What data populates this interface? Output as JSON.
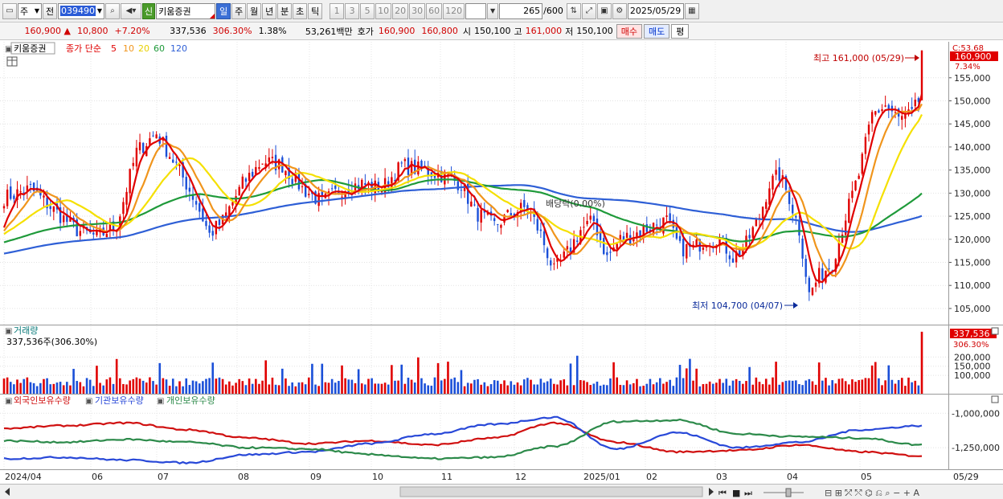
{
  "toolbar": {
    "market_select": "주",
    "prev_label": "전",
    "stock_code": "039490",
    "badge_sin": "신",
    "stock_name": "키움증권",
    "periods": [
      "일",
      "주",
      "월",
      "년",
      "분",
      "초",
      "틱"
    ],
    "active_period": "일",
    "intervals": [
      "1",
      "3",
      "5",
      "10",
      "20",
      "30",
      "60",
      "120"
    ],
    "count": "265",
    "count_max": "/600",
    "date": "2025/05/29"
  },
  "quote": {
    "price": "160,900",
    "change": "10,800",
    "change_pct": "+7.20%",
    "volume": "337,536",
    "volume_ratio": "306.30%",
    "turnover": "1.38%",
    "amount": "53,261백만",
    "hoga_label": "호가",
    "ask": "160,900",
    "bid": "160,800",
    "open_label": "시",
    "open": "150,100",
    "high_label": "고",
    "high": "161,000",
    "low_label": "저",
    "low": "150,100",
    "buy_btn": "매수",
    "sell_btn": "매도",
    "eval_btn": "평"
  },
  "legend": {
    "name": "키움증권",
    "ma_label": "종가 단순",
    "ma5": "5",
    "ma10": "10",
    "ma20": "20",
    "ma60": "60",
    "ma120": "120",
    "volume_title": "거래량",
    "volume_value": "337,536주(306.30%)",
    "holders": [
      "외국인보유수량",
      "기관보유수량",
      "개인보유수량"
    ]
  },
  "annotations": {
    "high": "최고 161,000 (05/29)",
    "low": "최저 104,700 (04/07)",
    "dividend": "배당락(0.00%)",
    "price_tag": "160,900",
    "price_tag_pct": "7.34%",
    "price_c": "C:53.68",
    "vol_tag": "337,536",
    "vol_tag_pct": "306.30%"
  },
  "colors": {
    "up": "#e00000",
    "down": "#1a4fd8",
    "ma5": "#e00000",
    "ma10": "#f0951c",
    "ma20": "#f5e000",
    "ma60": "#1f9a3a",
    "ma120": "#2e5fd6",
    "foreign": "#d01010",
    "inst": "#2848d8",
    "indiv": "#2c8a4a"
  },
  "chart_data": {
    "type": "candlestick",
    "price_axis": {
      "ticks": [
        105000,
        110000,
        115000,
        120000,
        125000,
        130000,
        135000,
        140000,
        145000,
        150000,
        155000
      ],
      "labels": [
        "105,000",
        "110,000",
        "115,000",
        "120,000",
        "125,000",
        "130,000",
        "135,000",
        "140,000",
        "145,000",
        "150,000",
        "155,000"
      ],
      "ylim": [
        101500,
        162800
      ]
    },
    "volume_axis": {
      "ticks": [
        100000,
        150000,
        200000
      ],
      "labels": [
        "100,000",
        "150,000",
        "200,000"
      ],
      "ylim": [
        0,
        350000
      ]
    },
    "holders_axis": {
      "ticks": [
        -1000000,
        -1250000
      ],
      "labels": [
        "-1,000,000",
        "-1,250,000"
      ]
    },
    "x_labels": [
      "2024/04",
      "06",
      "07",
      "08",
      "09",
      "10",
      "11",
      "12",
      "2025/01",
      "02",
      "03",
      "04",
      "05",
      "05/29"
    ],
    "price_anchors": [
      [
        0,
        129000
      ],
      [
        8,
        131000
      ],
      [
        14,
        127000
      ],
      [
        22,
        122000
      ],
      [
        28,
        120500
      ],
      [
        34,
        123000
      ],
      [
        40,
        139000
      ],
      [
        46,
        143000
      ],
      [
        52,
        136000
      ],
      [
        58,
        128000
      ],
      [
        62,
        121000
      ],
      [
        66,
        124000
      ],
      [
        72,
        132000
      ],
      [
        78,
        137000
      ],
      [
        84,
        136000
      ],
      [
        90,
        131000
      ],
      [
        96,
        128000
      ],
      [
        102,
        131000
      ],
      [
        108,
        132000
      ],
      [
        114,
        131000
      ],
      [
        120,
        136000
      ],
      [
        126,
        135000
      ],
      [
        132,
        134000
      ],
      [
        138,
        132000
      ],
      [
        142,
        126000
      ],
      [
        148,
        123000
      ],
      [
        154,
        126000
      ],
      [
        158,
        127000
      ],
      [
        162,
        121000
      ],
      [
        166,
        113000
      ],
      [
        170,
        117000
      ],
      [
        174,
        122000
      ],
      [
        178,
        124000
      ],
      [
        182,
        116000
      ],
      [
        186,
        120000
      ],
      [
        190,
        121000
      ],
      [
        196,
        123000
      ],
      [
        200,
        124000
      ],
      [
        204,
        118000
      ],
      [
        208,
        118000
      ],
      [
        212,
        120000
      ],
      [
        216,
        120000
      ],
      [
        220,
        116000
      ],
      [
        224,
        119000
      ],
      [
        228,
        125000
      ],
      [
        231,
        132000
      ],
      [
        234,
        134000
      ],
      [
        237,
        129000
      ],
      [
        240,
        122000
      ],
      [
        243,
        108000
      ],
      [
        246,
        112000
      ],
      [
        250,
        115000
      ],
      [
        254,
        125000
      ],
      [
        258,
        134000
      ],
      [
        262,
        147000
      ],
      [
        266,
        149000
      ],
      [
        270,
        146000
      ],
      [
        274,
        147000
      ],
      [
        276,
        150000
      ],
      [
        277,
        160900
      ]
    ],
    "series": [
      {
        "name": "외국인보유수량",
        "values": [
          -1110000,
          -1090000,
          -1070000,
          -1120000,
          -1180000,
          -1220000,
          -1200000,
          -1230000,
          -1180000,
          -1070000,
          -1210000,
          -1280000,
          -1270000,
          -1230000,
          -1280000,
          -1310000
        ]
      },
      {
        "name": "기관보유수량",
        "values": [
          -1330000,
          -1320000,
          -1340000,
          -1360000,
          -1300000,
          -1280000,
          -1220000,
          -1150000,
          -1080000,
          -1030000,
          -1260000,
          -1140000,
          -1250000,
          -1210000,
          -1120000,
          -1090000
        ]
      },
      {
        "name": "개인보유수량",
        "values": [
          -1200000,
          -1210000,
          -1190000,
          -1210000,
          -1250000,
          -1260000,
          -1300000,
          -1330000,
          -1320000,
          -1240000,
          -1060000,
          -1050000,
          -1150000,
          -1170000,
          -1180000,
          -1230000
        ]
      }
    ]
  }
}
